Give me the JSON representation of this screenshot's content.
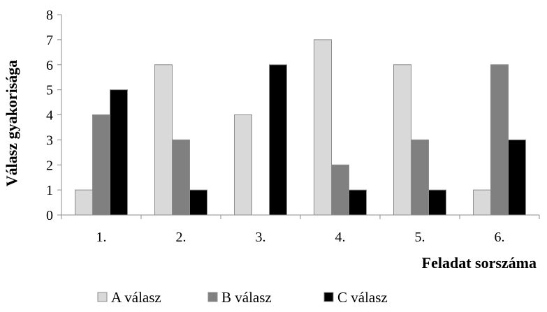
{
  "chart_data": {
    "type": "bar",
    "title": "",
    "xlabel": "Feladat sorszáma",
    "ylabel": "Válasz gyakorisága",
    "categories": [
      "1.",
      "2.",
      "3.",
      "4.",
      "5.",
      "6."
    ],
    "series": [
      {
        "name": "A válasz",
        "color": "#d9d9d9",
        "values": [
          1,
          6,
          4,
          7,
          6,
          1
        ]
      },
      {
        "name": "B válasz",
        "color": "#808080",
        "values": [
          4,
          3,
          0,
          2,
          3,
          6
        ]
      },
      {
        "name": "C válasz",
        "color": "#000000",
        "values": [
          5,
          1,
          6,
          1,
          1,
          3
        ]
      }
    ],
    "ylim": [
      0,
      8
    ],
    "yticks": [
      "0",
      "1",
      "2",
      "3",
      "4",
      "5",
      "6",
      "7",
      "8"
    ],
    "grid": false,
    "legend_position": "bottom"
  }
}
